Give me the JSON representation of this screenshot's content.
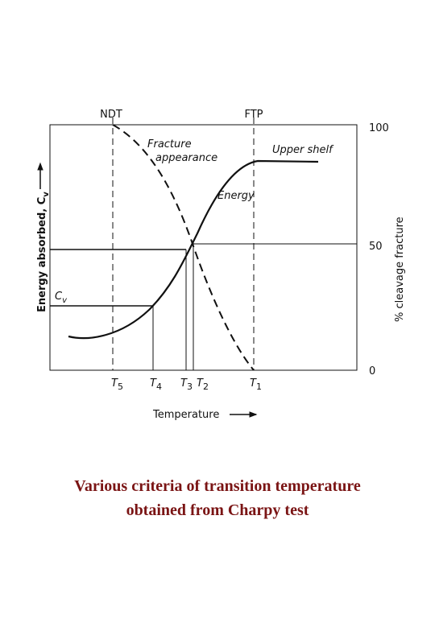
{
  "top_labels": [
    "NDT",
    "FTP"
  ],
  "right_ticks": [
    "100",
    "50",
    "0"
  ],
  "curve_labels": {
    "fracture": [
      "Fracture",
      "appearance"
    ],
    "upper_shelf": "Upper shelf",
    "energy": "Energy"
  },
  "cv": {
    "text": "C",
    "sub": "v"
  },
  "left_axis": {
    "text": "Energy absorbed, C",
    "sub": "v"
  },
  "right_axis": "% cleavage fracture",
  "x_axis": "Temperature",
  "temperatures": [
    {
      "text": "T",
      "sub": "5"
    },
    {
      "text": "T",
      "sub": "4"
    },
    {
      "text": "T",
      "sub": "3"
    },
    {
      "text": "T",
      "sub": "2"
    },
    {
      "text": "T",
      "sub": "1"
    }
  ],
  "caption": [
    "Various criteria of transition temperature",
    "obtained from Charpy test"
  ]
}
